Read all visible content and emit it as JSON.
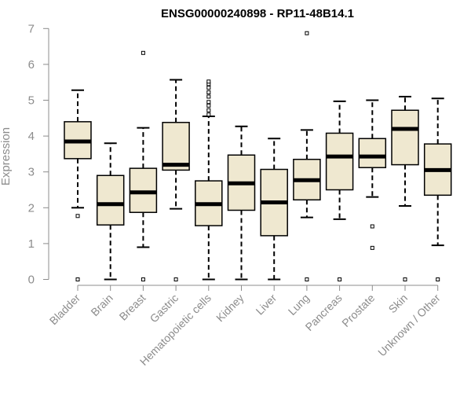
{
  "chart_data": {
    "type": "boxplot",
    "title": "ENSG00000240898 - RP11-48B14.1",
    "xlabel": "",
    "ylabel": "Expression",
    "ylim": [
      0,
      7
    ],
    "yticks": [
      0,
      1,
      2,
      3,
      4,
      5,
      6,
      7
    ],
    "grid": false,
    "box_fill": "#efe8d0",
    "box_stroke": "#000000",
    "axis_color": "#8c8c8c",
    "categories": [
      "Bladder",
      "Brain",
      "Breast",
      "Gastric",
      "Hematopoietic cells",
      "Kidney",
      "Liver",
      "Lung",
      "Pancreas",
      "Prostate",
      "Skin",
      "Unknown / Other"
    ],
    "boxes": [
      {
        "whisker_low": 2.0,
        "q1": 3.37,
        "median": 3.85,
        "q3": 4.4,
        "whisker_high": 5.28,
        "outliers": [
          1.77,
          0.0
        ]
      },
      {
        "whisker_low": 0.0,
        "q1": 1.52,
        "median": 2.1,
        "q3": 2.9,
        "whisker_high": 3.8,
        "outliers": []
      },
      {
        "whisker_low": 0.9,
        "q1": 1.87,
        "median": 2.43,
        "q3": 3.1,
        "whisker_high": 4.23,
        "outliers": [
          6.32,
          0.0
        ]
      },
      {
        "whisker_low": 1.97,
        "q1": 3.05,
        "median": 3.2,
        "q3": 4.38,
        "whisker_high": 5.57,
        "outliers": [
          0.0
        ]
      },
      {
        "whisker_low": 0.0,
        "q1": 1.5,
        "median": 2.1,
        "q3": 2.75,
        "whisker_high": 4.55,
        "outliers": [
          4.6,
          4.72,
          4.85,
          4.95,
          5.1,
          5.22,
          5.35,
          5.45,
          5.52
        ]
      },
      {
        "whisker_low": 0.0,
        "q1": 1.93,
        "median": 2.68,
        "q3": 3.47,
        "whisker_high": 4.27,
        "outliers": []
      },
      {
        "whisker_low": 0.0,
        "q1": 1.22,
        "median": 2.15,
        "q3": 3.07,
        "whisker_high": 3.93,
        "outliers": []
      },
      {
        "whisker_low": 1.73,
        "q1": 2.22,
        "median": 2.77,
        "q3": 3.35,
        "whisker_high": 4.17,
        "outliers": [
          6.87,
          0.0
        ]
      },
      {
        "whisker_low": 1.68,
        "q1": 2.5,
        "median": 3.43,
        "q3": 4.08,
        "whisker_high": 4.97,
        "outliers": [
          0.0
        ]
      },
      {
        "whisker_low": 2.3,
        "q1": 3.12,
        "median": 3.43,
        "q3": 3.93,
        "whisker_high": 5.0,
        "outliers": [
          1.48,
          0.88
        ]
      },
      {
        "whisker_low": 2.05,
        "q1": 3.2,
        "median": 4.2,
        "q3": 4.72,
        "whisker_high": 5.1,
        "outliers": [
          0.0
        ]
      },
      {
        "whisker_low": 0.95,
        "q1": 2.35,
        "median": 3.05,
        "q3": 3.78,
        "whisker_high": 5.05,
        "outliers": [
          0.0
        ]
      }
    ]
  }
}
